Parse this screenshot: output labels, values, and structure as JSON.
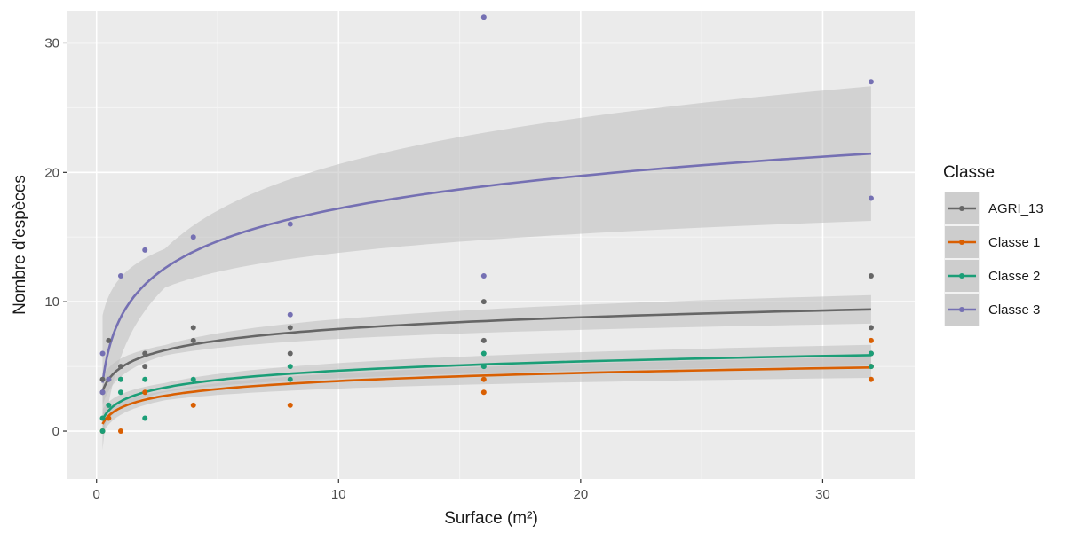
{
  "chart_data": {
    "type": "scatter",
    "xlabel": "Surface (m²)",
    "ylabel": "Nombre d'espèces",
    "xlim": [
      -1.2,
      33.8
    ],
    "ylim": [
      -3.7,
      32.5
    ],
    "x_ticks": [
      0,
      10,
      20,
      30
    ],
    "x_tick_labels": [
      "0",
      "10",
      "20",
      "30"
    ],
    "y_ticks": [
      0,
      10,
      20,
      30
    ],
    "y_tick_labels": [
      "0",
      "10",
      "20",
      "30"
    ],
    "grid": true,
    "panel_background": "#ebebeb",
    "band_color": "#bdbdbd",
    "legend": {
      "title": "Classe",
      "position": "right"
    },
    "fit_range": [
      0.25,
      32
    ],
    "series": [
      {
        "name": "AGRI_13",
        "color": "#666666",
        "fit": {
          "a": 4.9,
          "b": 1.3,
          "se_min": 0.4,
          "se_max": 1.1
        },
        "points": [
          [
            0.25,
            3
          ],
          [
            0.25,
            4
          ],
          [
            0.5,
            7
          ],
          [
            0.5,
            4
          ],
          [
            1,
            5
          ],
          [
            1,
            4
          ],
          [
            2,
            6
          ],
          [
            2,
            5
          ],
          [
            4,
            8
          ],
          [
            4,
            7
          ],
          [
            8,
            8
          ],
          [
            8,
            6
          ],
          [
            16,
            10
          ],
          [
            16,
            7
          ],
          [
            32,
            12
          ],
          [
            32,
            8
          ],
          [
            32,
            6
          ]
        ]
      },
      {
        "name": "Classe 1",
        "color": "#d95f02",
        "fit": {
          "a": 1.8,
          "b": 0.9,
          "se_min": 0.35,
          "se_max": 0.8
        },
        "points": [
          [
            0.25,
            0
          ],
          [
            0.5,
            1
          ],
          [
            1,
            0
          ],
          [
            2,
            3
          ],
          [
            4,
            2
          ],
          [
            8,
            2
          ],
          [
            16,
            3
          ],
          [
            16,
            4
          ],
          [
            32,
            7
          ],
          [
            32,
            5
          ],
          [
            32,
            4
          ]
        ]
      },
      {
        "name": "Classe 2",
        "color": "#1b9e77",
        "fit": {
          "a": 2.3,
          "b": 1.03,
          "se_min": 0.35,
          "se_max": 0.8
        },
        "points": [
          [
            0.25,
            1
          ],
          [
            0.25,
            0
          ],
          [
            0.5,
            2
          ],
          [
            1,
            3
          ],
          [
            1,
            4
          ],
          [
            2,
            4
          ],
          [
            2,
            1
          ],
          [
            4,
            4
          ],
          [
            8,
            5
          ],
          [
            8,
            4
          ],
          [
            16,
            6
          ],
          [
            16,
            5
          ],
          [
            32,
            6
          ],
          [
            32,
            5
          ]
        ]
      },
      {
        "name": "Classe 3",
        "color": "#7570b3",
        "fit": {
          "a": 8.8,
          "b": 3.65,
          "se_min": 1.5,
          "se_max": 5.2
        },
        "points": [
          [
            0.25,
            6
          ],
          [
            0.25,
            3
          ],
          [
            0.5,
            4
          ],
          [
            1,
            12
          ],
          [
            2,
            14
          ],
          [
            4,
            15
          ],
          [
            8,
            16
          ],
          [
            8,
            9
          ],
          [
            16,
            32
          ],
          [
            16,
            12
          ],
          [
            32,
            27
          ],
          [
            32,
            18
          ]
        ]
      }
    ]
  }
}
